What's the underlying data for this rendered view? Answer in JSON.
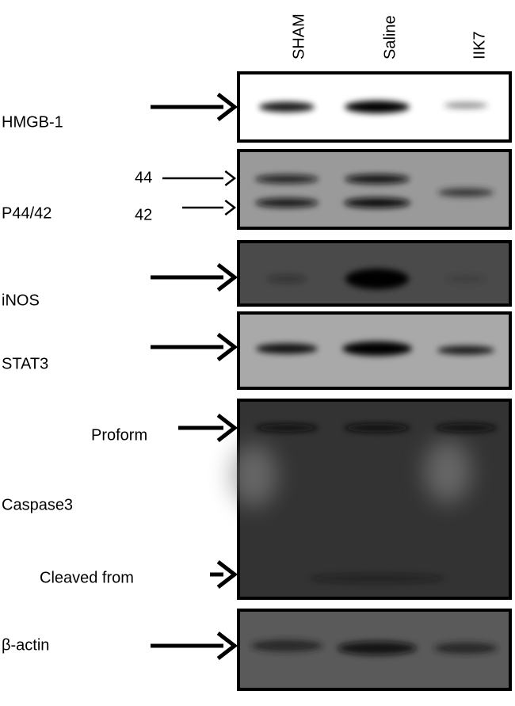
{
  "lanes": [
    "SHAM",
    "Saline",
    "IIK7"
  ],
  "panels": [
    {
      "label": "HMGB-1"
    },
    {
      "label": "P44/42",
      "markers": [
        "44",
        "42"
      ]
    },
    {
      "label": "iNOS"
    },
    {
      "label": "STAT3"
    },
    {
      "label": "Caspase3",
      "bands": [
        "Proform",
        "Cleaved from"
      ]
    },
    {
      "label": "β-actin"
    }
  ]
}
